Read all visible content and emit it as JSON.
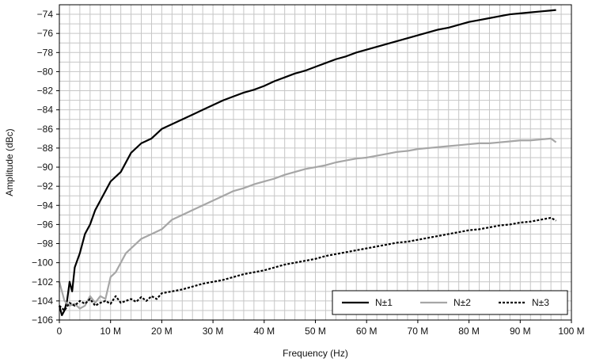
{
  "chart_data": {
    "type": "line",
    "title": "",
    "xlabel": "Frequency (Hz)",
    "ylabel": "Amplitude (dBc)",
    "xlim": [
      0,
      100
    ],
    "ylim": [
      -106,
      -73
    ],
    "x_ticks": [
      0,
      10,
      20,
      30,
      40,
      50,
      60,
      70,
      80,
      90,
      100
    ],
    "x_tick_labels": [
      "0",
      "10 M",
      "20 M",
      "30 M",
      "40 M",
      "50 M",
      "60 M",
      "70 M",
      "80 M",
      "90 M",
      "100 M"
    ],
    "y_ticks": [
      -106,
      -104,
      -102,
      -100,
      -98,
      -96,
      -94,
      -92,
      -90,
      -88,
      -86,
      -84,
      -82,
      -80,
      -78,
      -76,
      -74
    ],
    "y_tick_labels": [
      "−106",
      "−104",
      "−102",
      "−100",
      "−98",
      "−96",
      "−94",
      "−92",
      "−90",
      "−88",
      "−86",
      "−84",
      "−82",
      "−80",
      "−78",
      "−76",
      "−74"
    ],
    "grid": true,
    "legend_position": "bottom-right",
    "series": [
      {
        "name": "N±1",
        "color": "#000000",
        "dash": "solid",
        "x": [
          0,
          0.5,
          1,
          1.5,
          2,
          2.5,
          3,
          4,
          5,
          6,
          7,
          8,
          9,
          10,
          12,
          14,
          16,
          18,
          20,
          22,
          24,
          26,
          28,
          30,
          32,
          34,
          36,
          38,
          40,
          42,
          44,
          46,
          48,
          50,
          52,
          54,
          56,
          58,
          60,
          62,
          64,
          66,
          68,
          70,
          72,
          74,
          76,
          78,
          80,
          82,
          84,
          86,
          88,
          90,
          92,
          94,
          96,
          97
        ],
        "y": [
          -104.5,
          -105.5,
          -105,
          -104,
          -102,
          -103,
          -100.5,
          -99,
          -97,
          -96,
          -94.5,
          -93.5,
          -92.5,
          -91.5,
          -90.5,
          -88.5,
          -87.5,
          -87,
          -86,
          -85.5,
          -85,
          -84.5,
          -84,
          -83.5,
          -83,
          -82.6,
          -82.2,
          -81.9,
          -81.5,
          -81,
          -80.6,
          -80.2,
          -79.9,
          -79.5,
          -79.1,
          -78.7,
          -78.4,
          -78,
          -77.7,
          -77.4,
          -77.1,
          -76.8,
          -76.5,
          -76.2,
          -75.9,
          -75.6,
          -75.4,
          -75.1,
          -74.8,
          -74.6,
          -74.4,
          -74.2,
          -74,
          -73.9,
          -73.8,
          -73.7,
          -73.6,
          -73.55
        ]
      },
      {
        "name": "N±2",
        "color": "#a6a6a6",
        "dash": "solid",
        "x": [
          0,
          1,
          2,
          3,
          4,
          5,
          6,
          7,
          8,
          9,
          10,
          11,
          12,
          13,
          14,
          16,
          18,
          20,
          22,
          24,
          26,
          28,
          30,
          32,
          34,
          36,
          38,
          40,
          42,
          44,
          46,
          48,
          50,
          52,
          54,
          56,
          58,
          60,
          62,
          64,
          66,
          68,
          70,
          72,
          74,
          76,
          78,
          80,
          82,
          84,
          86,
          88,
          90,
          92,
          94,
          96,
          97
        ],
        "y": [
          -102,
          -104,
          -104.5,
          -104.3,
          -104.8,
          -104.5,
          -103.5,
          -104.2,
          -103.5,
          -103.8,
          -101.5,
          -101,
          -100,
          -99,
          -98.5,
          -97.5,
          -97,
          -96.5,
          -95.5,
          -95,
          -94.5,
          -94,
          -93.5,
          -93,
          -92.5,
          -92.2,
          -91.8,
          -91.5,
          -91.2,
          -90.8,
          -90.5,
          -90.2,
          -90,
          -89.8,
          -89.5,
          -89.3,
          -89.1,
          -89,
          -88.8,
          -88.6,
          -88.4,
          -88.3,
          -88.1,
          -88,
          -87.9,
          -87.8,
          -87.7,
          -87.6,
          -87.5,
          -87.5,
          -87.4,
          -87.3,
          -87.2,
          -87.2,
          -87.1,
          -87,
          -87.4
        ]
      },
      {
        "name": "N±3",
        "color": "#000000",
        "dash": "dashed",
        "x": [
          0,
          1,
          2,
          3,
          4,
          5,
          6,
          7,
          8,
          9,
          10,
          11,
          12,
          13,
          14,
          15,
          16,
          17,
          18,
          19,
          20,
          22,
          24,
          26,
          28,
          30,
          32,
          34,
          36,
          38,
          40,
          42,
          44,
          46,
          48,
          50,
          52,
          54,
          56,
          58,
          60,
          62,
          64,
          66,
          68,
          70,
          72,
          74,
          76,
          78,
          80,
          82,
          84,
          86,
          88,
          90,
          92,
          94,
          96,
          97
        ],
        "y": [
          -104.5,
          -105,
          -104.2,
          -104.5,
          -104,
          -104.3,
          -103.8,
          -104.5,
          -104.2,
          -104,
          -104.3,
          -103.5,
          -104.2,
          -104,
          -103.8,
          -104.1,
          -103.6,
          -104,
          -103.5,
          -103.8,
          -103.2,
          -103,
          -102.8,
          -102.5,
          -102.2,
          -102,
          -101.8,
          -101.5,
          -101.2,
          -101,
          -100.8,
          -100.5,
          -100.2,
          -100,
          -99.8,
          -99.6,
          -99.3,
          -99.1,
          -98.9,
          -98.7,
          -98.5,
          -98.3,
          -98.1,
          -97.9,
          -97.8,
          -97.6,
          -97.4,
          -97.2,
          -97,
          -96.8,
          -96.6,
          -96.5,
          -96.3,
          -96.1,
          -96,
          -95.8,
          -95.7,
          -95.5,
          -95.3,
          -95.6
        ]
      }
    ]
  }
}
